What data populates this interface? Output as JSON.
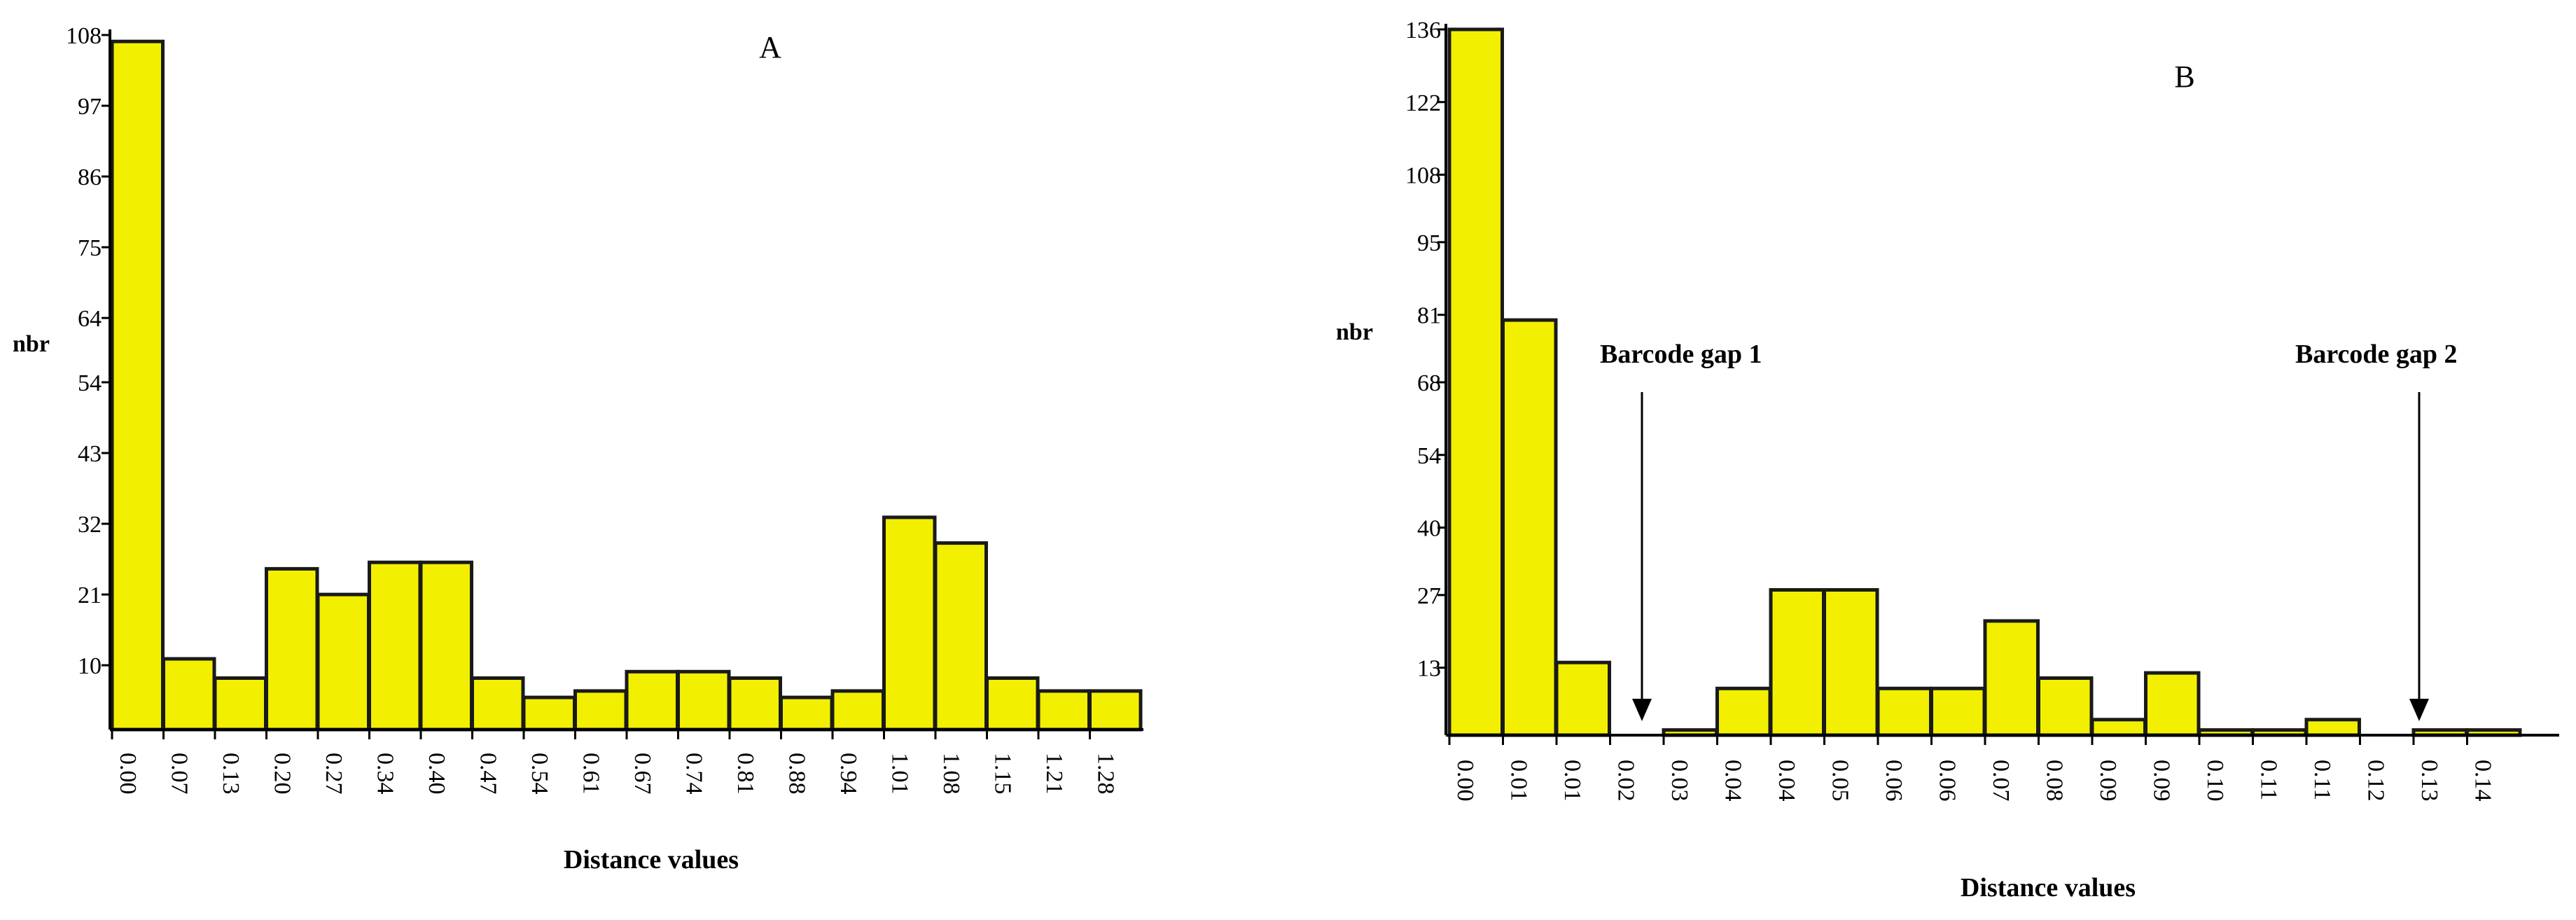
{
  "colors": {
    "bar_fill": "#f2f000",
    "bar_stroke": "#1a1a1a",
    "axis": "#000000"
  },
  "chart_data": [
    {
      "type": "bar",
      "panel_label": "A",
      "xlabel": "Distance values",
      "ylabel": "nbr",
      "ylim": [
        0,
        108
      ],
      "yticks": [
        108,
        97,
        86,
        75,
        64,
        54,
        43,
        32,
        21,
        10
      ],
      "categories": [
        "0.00",
        "0.07",
        "0.13",
        "0.20",
        "0.27",
        "0.34",
        "0.40",
        "0.47",
        "0.54",
        "0.61",
        "0.67",
        "0.74",
        "0.81",
        "0.88",
        "0.94",
        "1.01",
        "1.08",
        "1.15",
        "1.21",
        "1.28"
      ],
      "values": [
        107,
        11,
        8,
        25,
        21,
        26,
        26,
        8,
        5,
        6,
        9,
        9,
        8,
        5,
        6,
        33,
        29,
        8,
        6,
        6
      ],
      "grid": false
    },
    {
      "type": "bar",
      "panel_label": "B",
      "xlabel": "Distance values",
      "ylabel": "nbr",
      "ylim": [
        0,
        136
      ],
      "yticks": [
        136,
        122,
        108,
        95,
        81,
        68,
        54,
        40,
        27,
        13
      ],
      "categories": [
        "0.00",
        "0.01",
        "0.01",
        "0.02",
        "0.03",
        "0.04",
        "0.04",
        "0.05",
        "0.06",
        "0.06",
        "0.07",
        "0.08",
        "0.09",
        "0.09",
        "0.10",
        "0.11",
        "0.11",
        "0.12",
        "0.13",
        "0.14"
      ],
      "values": [
        136,
        80,
        14,
        0,
        1,
        9,
        28,
        28,
        9,
        9,
        22,
        11,
        3,
        12,
        1,
        1,
        3,
        0,
        1,
        1
      ],
      "annotations": [
        "Barcode gap 1",
        "Barcode gap 2"
      ],
      "grid": false
    }
  ]
}
